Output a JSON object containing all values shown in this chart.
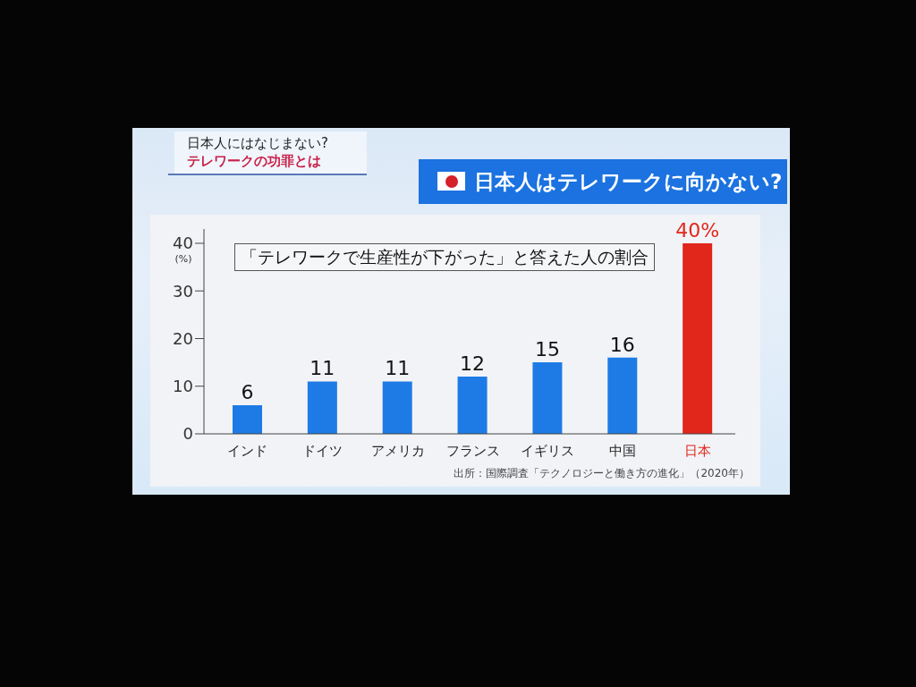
{
  "chart_data": {
    "type": "bar",
    "title": "日本人はテレワークに向かない?",
    "subtitle": "「テレワークで生産性が下がった」と答えた人の割合",
    "annotations": [
      "日本人にはなじまない?",
      "テレワークの功罪とは",
      "出所：国際調査「テクノロジーと働き方の進化」（2020年）"
    ],
    "ylabel": "(%)",
    "categories": [
      "インド",
      "ドイツ",
      "アメリカ",
      "フランス",
      "イギリス",
      "中国",
      "日本"
    ],
    "values": [
      6,
      11,
      11,
      12,
      15,
      16,
      40
    ],
    "colors": [
      "#1e7be6",
      "#1e7be6",
      "#1e7be6",
      "#1e7be6",
      "#1e7be6",
      "#1e7be6",
      "#e1261c"
    ],
    "value_labels": [
      "6",
      "11",
      "11",
      "12",
      "15",
      "16",
      "40%"
    ],
    "ylim": [
      0,
      43
    ],
    "yticks": [
      0,
      10,
      20,
      30,
      40
    ]
  }
}
